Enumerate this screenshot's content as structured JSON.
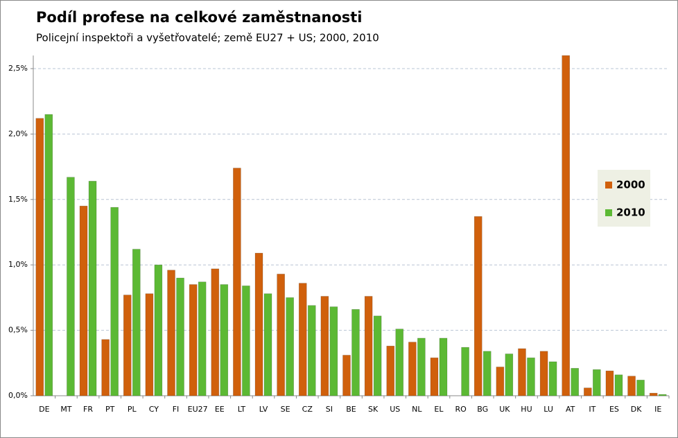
{
  "chart_data": {
    "type": "bar",
    "title": "Podíl profese na celkové zaměstnanosti",
    "subtitle": "Policejní inspektoři a vyšetřovatelé; země EU27 + US; 2000, 2010",
    "categories": [
      "DE",
      "MT",
      "FR",
      "PT",
      "PL",
      "CY",
      "FI",
      "EU27",
      "EE",
      "LT",
      "LV",
      "SE",
      "CZ",
      "SI",
      "BE",
      "SK",
      "US",
      "NL",
      "EL",
      "RO",
      "BG",
      "UK",
      "HU",
      "LU",
      "AT",
      "IT",
      "ES",
      "DK",
      "IE"
    ],
    "series": [
      {
        "name": "2000",
        "color": "#d0600c",
        "values": [
          2.12,
          null,
          1.45,
          0.43,
          0.77,
          0.78,
          0.96,
          0.85,
          0.97,
          1.74,
          1.09,
          0.93,
          0.86,
          0.76,
          0.31,
          0.76,
          0.38,
          0.41,
          0.29,
          null,
          1.37,
          0.22,
          0.36,
          0.34,
          2.6,
          0.06,
          0.19,
          0.15,
          0.02
        ]
      },
      {
        "name": "2010",
        "color": "#5cb934",
        "values": [
          2.15,
          1.67,
          1.64,
          1.44,
          1.12,
          1.0,
          0.9,
          0.87,
          0.85,
          0.84,
          0.78,
          0.75,
          0.69,
          0.68,
          0.66,
          0.61,
          0.51,
          0.44,
          0.44,
          0.37,
          0.34,
          0.32,
          0.29,
          0.26,
          0.21,
          0.2,
          0.16,
          0.12,
          0.01
        ]
      }
    ],
    "ylim": [
      0,
      2.6
    ],
    "yticks": [
      {
        "value": 0,
        "label": "0,0%"
      },
      {
        "value": 0.5,
        "label": "0,5%"
      },
      {
        "value": 1,
        "label": "1,0%"
      },
      {
        "value": 1.5,
        "label": "1,5%"
      },
      {
        "value": 2,
        "label": "2,0%"
      },
      {
        "value": 2.5,
        "label": "2,5%"
      }
    ],
    "grid": true,
    "legend": "right"
  }
}
